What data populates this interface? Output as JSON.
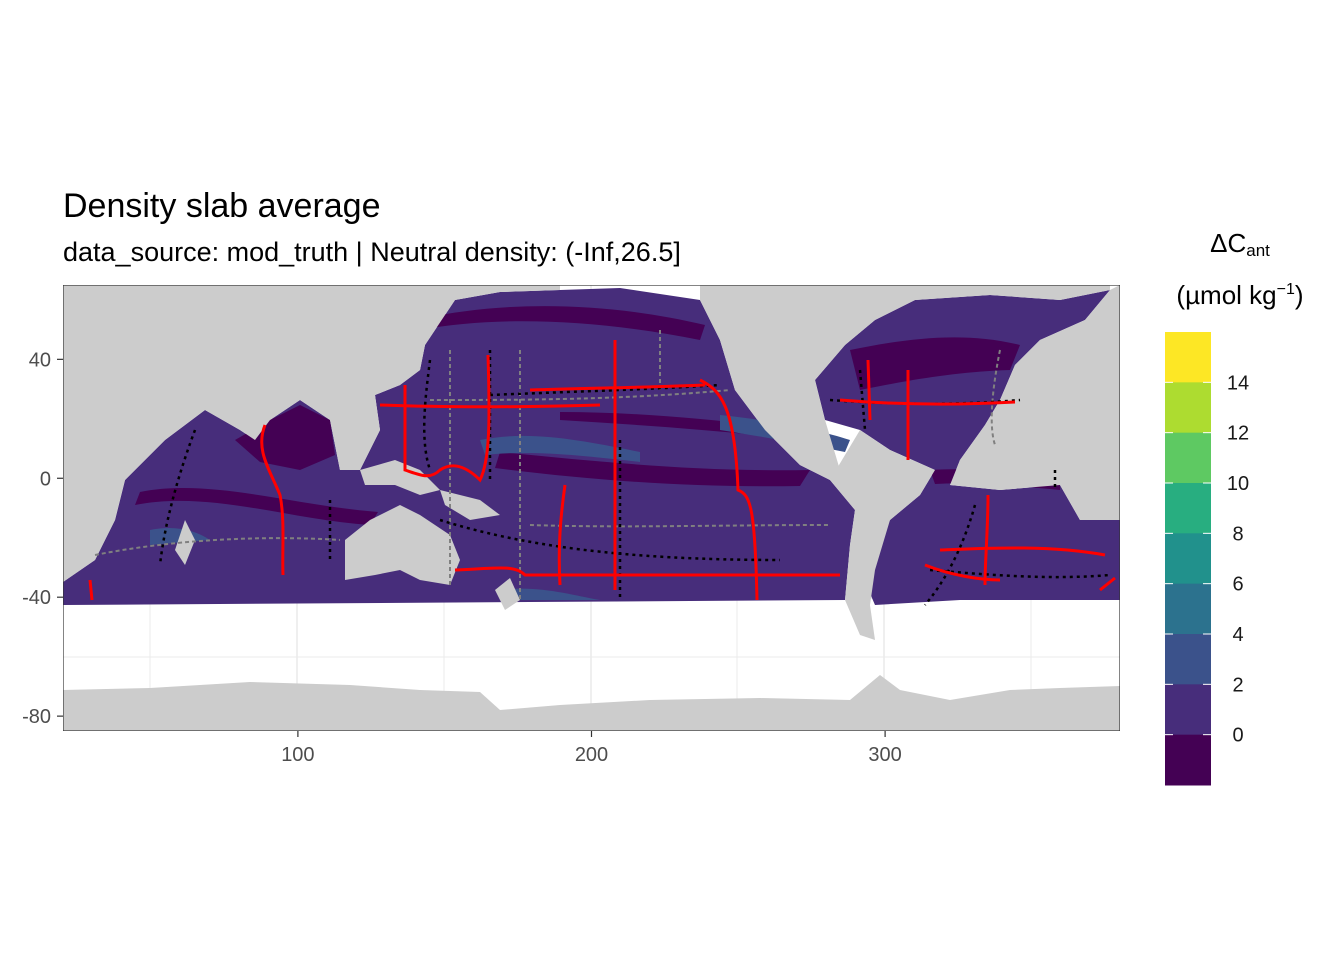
{
  "chart_data": {
    "type": "heatmap",
    "title": "Density slab average",
    "subtitle": "data_source: mod_truth | Neutral density: (-Inf,26.5]",
    "x_ticks": [
      100,
      200,
      300
    ],
    "y_ticks": [
      40,
      0,
      -40,
      -80
    ],
    "xlim": [
      20,
      380
    ],
    "ylim": [
      -85,
      65
    ],
    "grid": true,
    "colors": {
      "land": "#cccccc",
      "no_data": "#ffffff",
      "bin_minus2_0": "#440154",
      "bin_0_2": "#472d7b",
      "bin_2_4": "#3b528b",
      "bin_4_6": "#2c728e",
      "bin_6_8": "#21918c",
      "bin_8_10": "#28ae80",
      "bin_10_12": "#5ec962",
      "bin_12_14": "#addc30",
      "bin_14_16": "#fde725",
      "track_primary": "#ff0000",
      "track_secondary": "#000000",
      "track_tertiary": "#808080"
    },
    "legend": {
      "title_main": "ΔC",
      "title_sub": "ant",
      "unit_pre": "(µmol kg",
      "unit_sup": "−1",
      "unit_post": ")",
      "labels": [
        "14",
        "12",
        "10",
        "8",
        "6",
        "4",
        "2",
        "0"
      ],
      "bins": [
        "#fde725",
        "#addc30",
        "#5ec962",
        "#28ae80",
        "#21918c",
        "#2c728e",
        "#3b528b",
        "#472d7b",
        "#440154"
      ],
      "placement": "right"
    }
  }
}
